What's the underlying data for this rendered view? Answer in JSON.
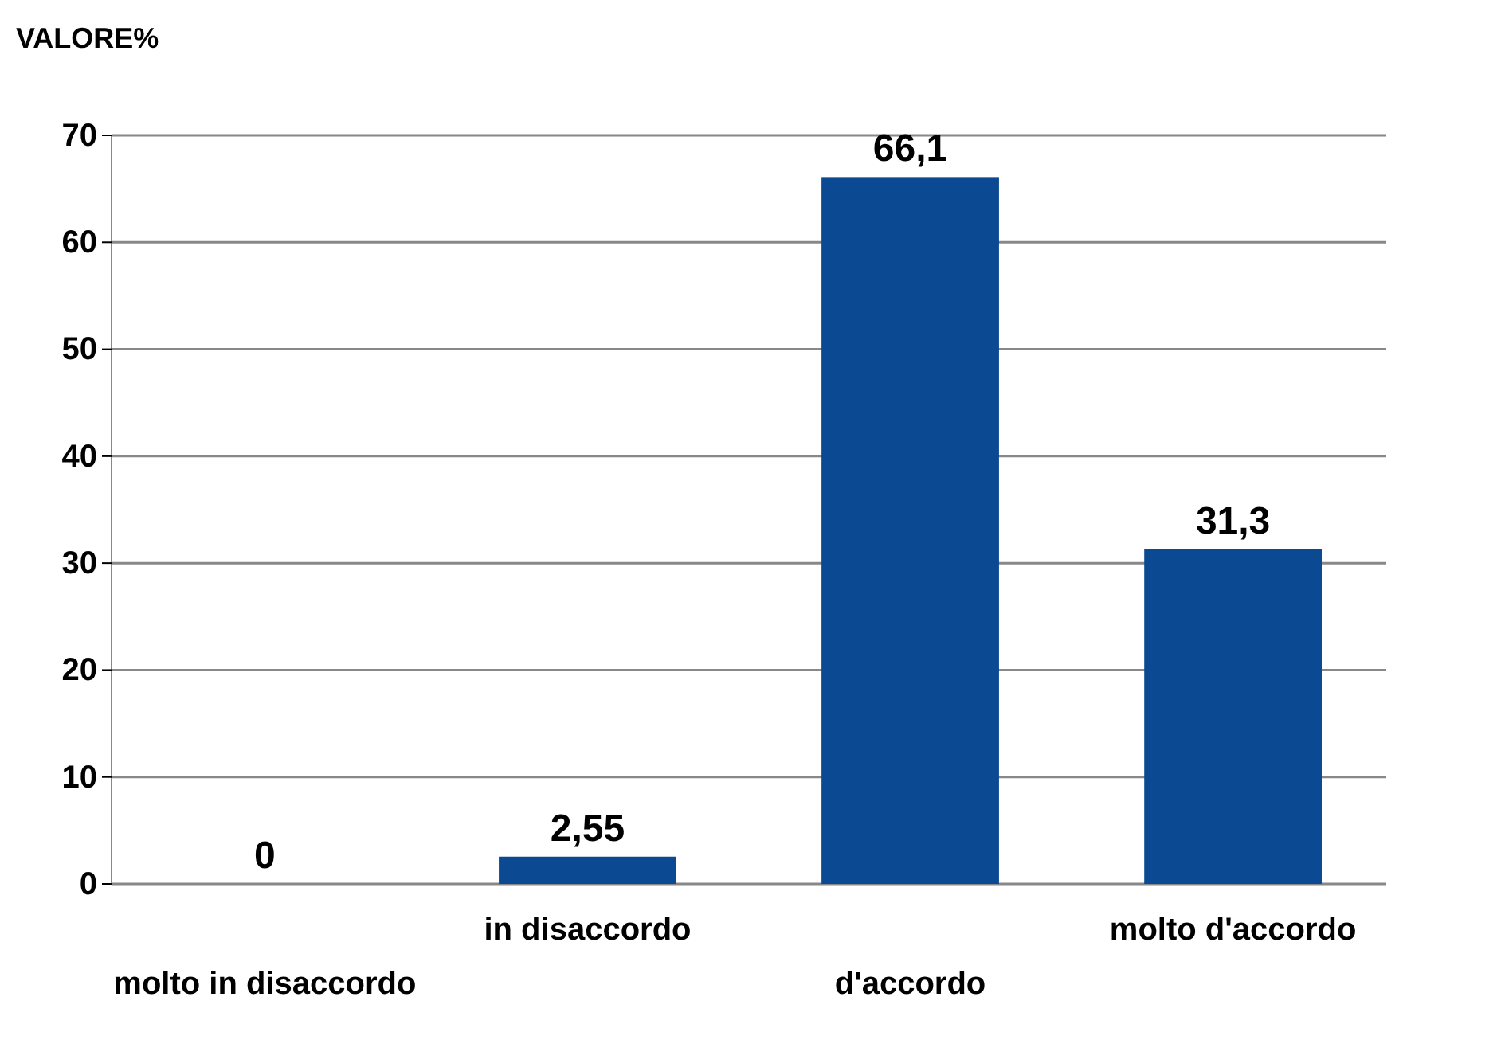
{
  "chart_data": {
    "type": "bar",
    "ylabel": "VALORE%",
    "categories": [
      "molto in disaccordo",
      "in disaccordo",
      "d'accordo",
      "molto d'accordo"
    ],
    "values": [
      0,
      2.55,
      66.1,
      31.3
    ],
    "value_labels": [
      "0",
      "2,55",
      "66,1",
      "31,3"
    ],
    "color": "#0b4a92",
    "ylim": [
      0,
      70
    ],
    "yticks": [
      0,
      10,
      20,
      30,
      40,
      50,
      60,
      70
    ],
    "grid": "y"
  }
}
